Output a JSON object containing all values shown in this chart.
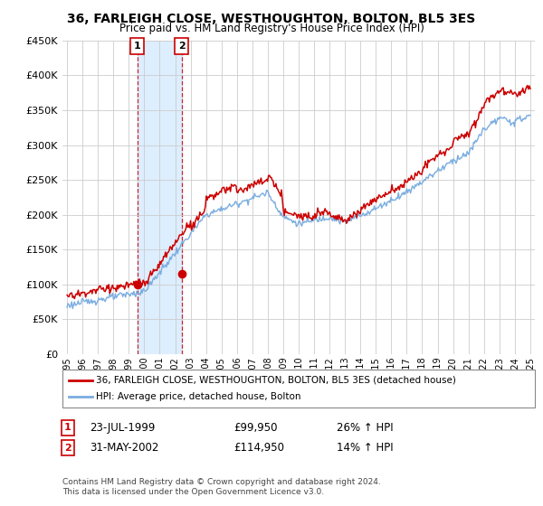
{
  "title": "36, FARLEIGH CLOSE, WESTHOUGHTON, BOLTON, BL5 3ES",
  "subtitle": "Price paid vs. HM Land Registry's House Price Index (HPI)",
  "legend_label_red": "36, FARLEIGH CLOSE, WESTHOUGHTON, BOLTON, BL5 3ES (detached house)",
  "legend_label_blue": "HPI: Average price, detached house, Bolton",
  "annotation1_label": "1",
  "annotation1_date": "23-JUL-1999",
  "annotation1_price": "£99,950",
  "annotation1_hpi": "26% ↑ HPI",
  "annotation1_year": 1999.55,
  "annotation1_value": 99950,
  "annotation2_label": "2",
  "annotation2_date": "31-MAY-2002",
  "annotation2_price": "£114,950",
  "annotation2_hpi": "14% ↑ HPI",
  "annotation2_year": 2002.41,
  "annotation2_value": 114950,
  "footer": "Contains HM Land Registry data © Crown copyright and database right 2024.\nThis data is licensed under the Open Government Licence v3.0.",
  "ylim": [
    0,
    450000
  ],
  "yticks": [
    0,
    50000,
    100000,
    150000,
    200000,
    250000,
    300000,
    350000,
    400000,
    450000
  ],
  "color_red": "#cc0000",
  "color_blue": "#7aade0",
  "shade_color": "#ddeeff",
  "background_color": "#ffffff",
  "plot_bg_color": "#ffffff",
  "grid_color": "#cccccc"
}
